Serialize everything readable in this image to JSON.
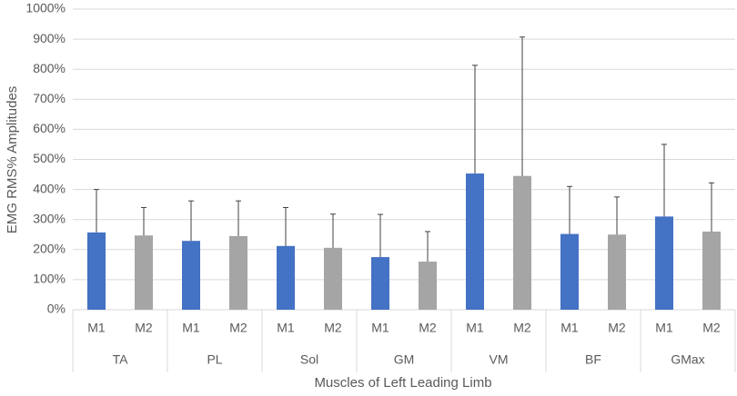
{
  "chart_data": {
    "type": "bar",
    "categories": [
      "TA",
      "PL",
      "Sol",
      "GM",
      "VM",
      "BF",
      "GMax"
    ],
    "series": [
      {
        "name": "M1",
        "color": "#4472c4",
        "values": [
          257,
          229,
          212,
          175,
          453,
          252,
          310
        ],
        "errors": [
          143,
          133,
          128,
          142,
          360,
          158,
          240
        ]
      },
      {
        "name": "M2",
        "color": "#a5a5a5",
        "values": [
          247,
          245,
          206,
          160,
          445,
          250,
          260
        ],
        "errors": [
          93,
          117,
          112,
          100,
          462,
          125,
          162
        ]
      }
    ],
    "y_label": "EMG RMS% Amplitudes",
    "x_label": "Muscles of Left Leading Limb",
    "ylim": [
      0,
      1000
    ],
    "yticks": [
      {
        "value": 0,
        "label": "0%"
      },
      {
        "value": 100,
        "label": "100%"
      },
      {
        "value": 200,
        "label": "200%"
      },
      {
        "value": 300,
        "label": "300%"
      },
      {
        "value": 400,
        "label": "400%"
      },
      {
        "value": 500,
        "label": "500%"
      },
      {
        "value": 600,
        "label": "600%"
      },
      {
        "value": 700,
        "label": "700%"
      },
      {
        "value": 800,
        "label": "800%"
      },
      {
        "value": 900,
        "label": "900%"
      },
      {
        "value": 1000,
        "label": "1000%"
      }
    ],
    "grid": true
  }
}
